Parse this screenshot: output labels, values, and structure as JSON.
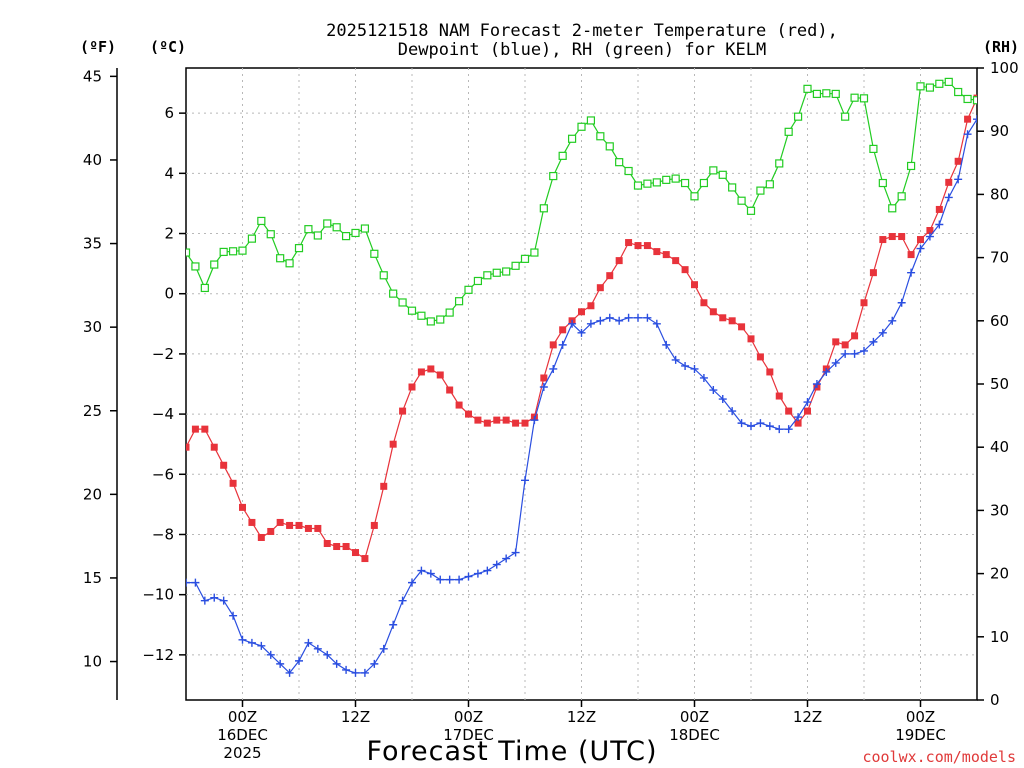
{
  "chart_data": {
    "type": "line",
    "title_line1": "2025121518 NAM Forecast 2-meter Temperature (red),",
    "title_line2": "Dewpoint (blue), RH (green) for KELM",
    "unit_f": "(ºF)",
    "unit_c": "(ºC)",
    "unit_rh": "(RH)",
    "xlabel": "Forecast Time (UTC)",
    "credit": "coolwx.com/models",
    "x_ticks": [
      {
        "hour": 6,
        "line1": "00Z",
        "line2": "16DEC",
        "line3": "2025"
      },
      {
        "hour": 18,
        "line1": "12Z",
        "line2": "",
        "line3": ""
      },
      {
        "hour": 30,
        "line1": "00Z",
        "line2": "17DEC",
        "line3": ""
      },
      {
        "hour": 42,
        "line1": "12Z",
        "line2": "",
        "line3": ""
      },
      {
        "hour": 54,
        "line1": "00Z",
        "line2": "18DEC",
        "line3": ""
      },
      {
        "hour": 66,
        "line1": "12Z",
        "line2": "",
        "line3": ""
      },
      {
        "hour": 78,
        "line1": "00Z",
        "line2": "19DEC",
        "line3": ""
      }
    ],
    "x_range_hours": [
      0,
      84
    ],
    "c_ticks": [
      "6",
      "4",
      "2",
      "0",
      "−2",
      "−4",
      "−6",
      "−8",
      "−10",
      "−12"
    ],
    "c_tick_values": [
      6,
      4,
      2,
      0,
      -2,
      -4,
      -6,
      -8,
      -10,
      -12
    ],
    "c_range": [
      -13.5,
      7.5
    ],
    "f_ticks": [
      "45",
      "40",
      "35",
      "30",
      "25",
      "20",
      "15",
      "10"
    ],
    "f_tick_values": [
      45,
      40,
      35,
      30,
      25,
      20,
      15,
      10
    ],
    "rh_ticks": [
      "100",
      "90",
      "80",
      "70",
      "60",
      "50",
      "40",
      "30",
      "20",
      "10",
      "0"
    ],
    "rh_tick_values": [
      100,
      90,
      80,
      70,
      60,
      50,
      40,
      30,
      20,
      10,
      0
    ],
    "rh_range": [
      0,
      100
    ],
    "grid": true,
    "series": [
      {
        "name": "Temperature",
        "axis": "c",
        "color": "#e8333b",
        "marker": "square-filled",
        "values": [
          -5.1,
          -4.5,
          -4.5,
          -5.1,
          -5.7,
          -6.3,
          -7.1,
          -7.6,
          -8.1,
          -7.9,
          -7.6,
          -7.7,
          -7.7,
          -7.8,
          -7.8,
          -8.3,
          -8.4,
          -8.4,
          -8.6,
          -8.8,
          -7.7,
          -6.4,
          -5.0,
          -3.9,
          -3.1,
          -2.6,
          -2.5,
          -2.7,
          -3.2,
          -3.7,
          -4.0,
          -4.2,
          -4.3,
          -4.2,
          -4.2,
          -4.3,
          -4.3,
          -4.1,
          -2.8,
          -1.7,
          -1.2,
          -0.9,
          -0.6,
          -0.4,
          0.2,
          0.6,
          1.1,
          1.7,
          1.6,
          1.6,
          1.4,
          1.3,
          1.1,
          0.8,
          0.3,
          -0.3,
          -0.6,
          -0.8,
          -0.9,
          -1.1,
          -1.5,
          -2.1,
          -2.6,
          -3.4,
          -3.9,
          -4.3,
          -3.9,
          -3.1,
          -2.5,
          -1.6,
          -1.7,
          -1.4,
          -0.3,
          0.7,
          1.8,
          1.9,
          1.9,
          1.3,
          1.8,
          2.1,
          2.8,
          3.7,
          4.4,
          5.8,
          6.5
        ]
      },
      {
        "name": "Dewpoint",
        "axis": "c",
        "color": "#2a4ee0",
        "marker": "plus",
        "values": [
          -9.6,
          -9.6,
          -10.2,
          -10.1,
          -10.2,
          -10.7,
          -11.5,
          -11.6,
          -11.7,
          -12.0,
          -12.3,
          -12.6,
          -12.2,
          -11.6,
          -11.8,
          -12.0,
          -12.3,
          -12.5,
          -12.6,
          -12.6,
          -12.3,
          -11.8,
          -11.0,
          -10.2,
          -9.6,
          -9.2,
          -9.3,
          -9.5,
          -9.5,
          -9.5,
          -9.4,
          -9.3,
          -9.2,
          -9.0,
          -8.8,
          -8.6,
          -6.2,
          -4.2,
          -3.1,
          -2.5,
          -1.7,
          -1.0,
          -1.3,
          -1.0,
          -0.9,
          -0.8,
          -0.9,
          -0.8,
          -0.8,
          -0.8,
          -1.0,
          -1.7,
          -2.2,
          -2.4,
          -2.5,
          -2.8,
          -3.2,
          -3.5,
          -3.9,
          -4.3,
          -4.4,
          -4.3,
          -4.4,
          -4.5,
          -4.5,
          -4.1,
          -3.6,
          -3.0,
          -2.6,
          -2.3,
          -2.0,
          -2.0,
          -1.9,
          -1.6,
          -1.3,
          -0.9,
          -0.3,
          0.7,
          1.5,
          1.9,
          2.3,
          3.2,
          3.8,
          5.3,
          5.8
        ]
      },
      {
        "name": "RH",
        "axis": "rh",
        "color": "#22cc22",
        "marker": "square-open",
        "values": [
          70.8,
          68.6,
          65.2,
          68.9,
          70.9,
          71.0,
          71.1,
          73.0,
          75.8,
          73.7,
          69.9,
          69.1,
          71.5,
          74.5,
          73.5,
          75.4,
          74.8,
          73.4,
          73.9,
          74.6,
          70.6,
          67.2,
          64.3,
          62.9,
          61.6,
          60.8,
          59.9,
          60.2,
          61.3,
          63.1,
          64.9,
          66.3,
          67.2,
          67.6,
          67.8,
          68.7,
          69.8,
          70.8,
          77.8,
          82.9,
          86.1,
          88.8,
          90.7,
          91.7,
          89.2,
          87.6,
          85.1,
          83.7,
          81.4,
          81.7,
          81.9,
          82.3,
          82.5,
          81.8,
          79.7,
          81.8,
          83.8,
          83.1,
          81.1,
          79.0,
          77.4,
          80.6,
          81.6,
          84.9,
          89.9,
          92.3,
          96.7,
          95.9,
          96.0,
          95.9,
          92.3,
          95.3,
          95.2,
          87.2,
          81.8,
          77.8,
          79.7,
          84.5,
          97.1,
          96.9,
          97.5,
          97.8,
          96.2,
          95.1,
          94.9
        ]
      }
    ]
  }
}
